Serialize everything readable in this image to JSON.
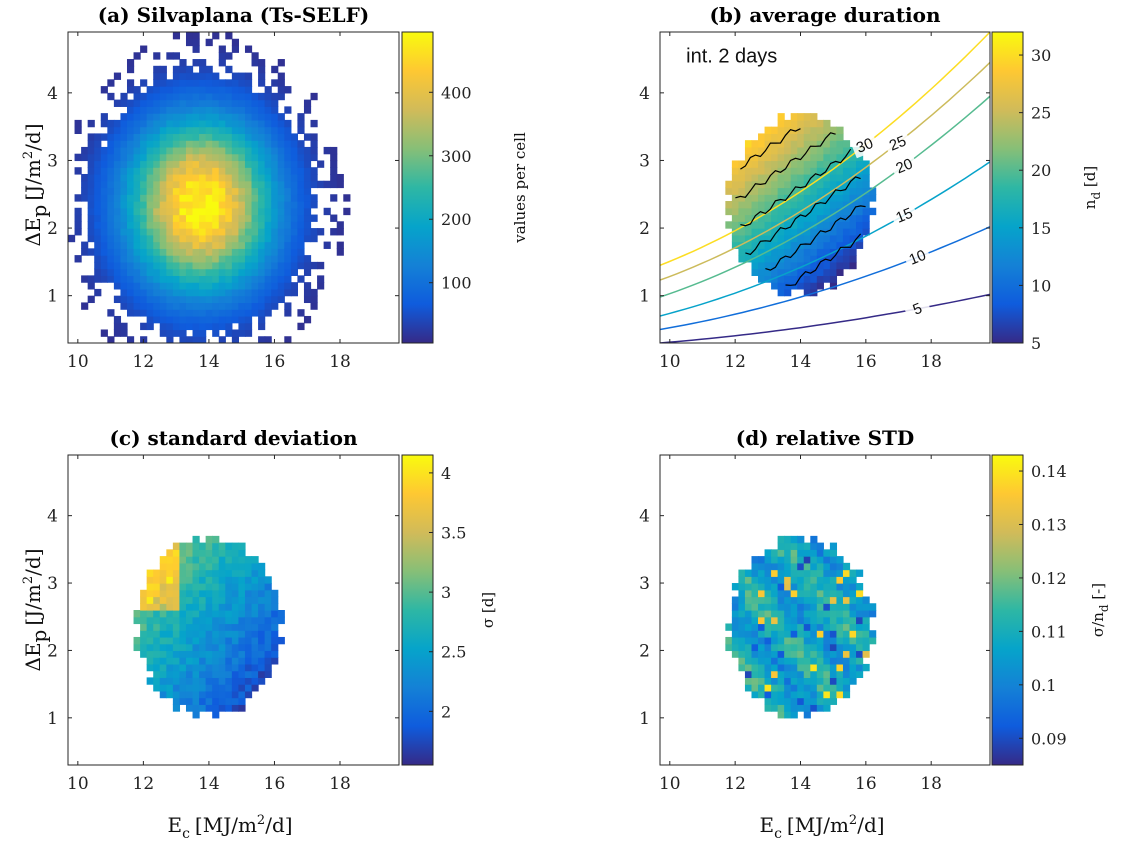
{
  "figure": {
    "shared_ylabel": "ΔE",
    "shared_ylabel_sub": "p",
    "shared_ylabel_units": "[J/m",
    "shared_ylabel_units2": "/d]",
    "shared_xlabel": "E",
    "shared_xlabel_sub": "c",
    "shared_xlabel_units": "[MJ/m",
    "shared_xlabel_units2": "/d]"
  },
  "chart_data": [
    {
      "id": "a",
      "type": "heatmap",
      "title": "(a) Silvaplana (Ts-SELF)",
      "xlim": [
        9.7,
        19.8
      ],
      "ylim": [
        0.3,
        4.9
      ],
      "xticks": [
        10,
        12,
        14,
        16,
        18
      ],
      "yticks": [
        1,
        2,
        3,
        4
      ],
      "xlabel": "",
      "ylabel": "ΔE_p [J/m^2/d]",
      "colorbar": {
        "label": "values per cell",
        "range": [
          5,
          495
        ],
        "ticks": [
          100,
          200,
          300,
          400
        ]
      },
      "peak": {
        "x": 13.75,
        "y": 2.35,
        "value": 490
      },
      "extent": {
        "x": [
          10.5,
          19.2
        ],
        "y": [
          0.35,
          4.5
        ]
      }
    },
    {
      "id": "b",
      "type": "heatmap",
      "title": "(b) average duration",
      "annotation": "int. 2 days",
      "xlim": [
        9.7,
        19.8
      ],
      "ylim": [
        0.3,
        4.9
      ],
      "xticks": [
        10,
        12,
        14,
        16,
        18
      ],
      "yticks": [
        1,
        2,
        3,
        4
      ],
      "xlabel": "",
      "ylabel": "",
      "colorbar": {
        "label": "n_d [d]",
        "range": [
          5,
          32
        ],
        "ticks": [
          5,
          10,
          15,
          20,
          25,
          30
        ]
      },
      "contour_levels": [
        5,
        10,
        15,
        20,
        25,
        30
      ],
      "contour_labels": [
        "5",
        "10",
        "15",
        "20",
        "25",
        "30"
      ],
      "contour_y_at_x10": [
        0.3,
        0.5,
        0.7,
        0.98,
        1.23,
        1.45
      ],
      "contour_y_at_x19_8": [
        1.02,
        2.02,
        2.98,
        3.95,
        4.45,
        4.9
      ],
      "extent": {
        "center": [
          14.0,
          2.35
        ],
        "radius_x": 2.2,
        "radius_y": 1.3
      }
    },
    {
      "id": "c",
      "type": "heatmap",
      "title": "(c) standard deviation",
      "xlim": [
        9.7,
        19.8
      ],
      "ylim": [
        0.3,
        4.9
      ],
      "xticks": [
        10,
        12,
        14,
        16,
        18
      ],
      "yticks": [
        1,
        2,
        3,
        4
      ],
      "xlabel": "E_c [MJ/m^2/d]",
      "ylabel": "ΔE_p [J/m^2/d]",
      "colorbar": {
        "label": "σ [d]",
        "range": [
          1.55,
          4.15
        ],
        "ticks": [
          2,
          2.5,
          3,
          3.5,
          4
        ],
        "tick_labels": [
          "2",
          "2.5",
          "3",
          "3.5",
          "4"
        ]
      },
      "extent": {
        "center": [
          14.0,
          2.35
        ],
        "radius_x": 2.2,
        "radius_y": 1.3
      }
    },
    {
      "id": "d",
      "type": "heatmap",
      "title": "(d) relative STD",
      "xlim": [
        9.7,
        19.8
      ],
      "ylim": [
        0.3,
        4.9
      ],
      "xticks": [
        10,
        12,
        14,
        16,
        18
      ],
      "yticks": [
        1,
        2,
        3,
        4
      ],
      "xlabel": "E_c [MJ/m^2/d]",
      "ylabel": "",
      "colorbar": {
        "label": "σ/n_d [-]",
        "range": [
          0.085,
          0.143
        ],
        "ticks": [
          0.09,
          0.1,
          0.11,
          0.12,
          0.13,
          0.14
        ],
        "tick_labels": [
          "0.09",
          "0.1",
          "0.11",
          "0.12",
          "0.13",
          "0.14"
        ]
      },
      "extent": {
        "center": [
          14.0,
          2.35
        ],
        "radius_x": 2.2,
        "radius_y": 1.3
      }
    }
  ]
}
